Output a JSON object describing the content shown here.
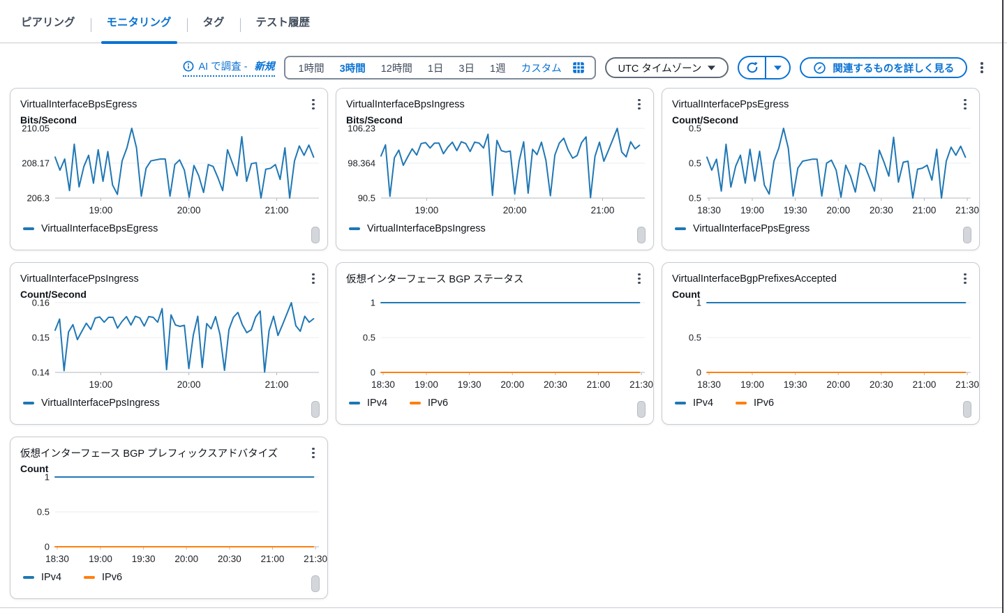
{
  "tabs": [
    {
      "label": "ピアリング",
      "active": false
    },
    {
      "label": "モニタリング",
      "active": true
    },
    {
      "label": "タグ",
      "active": false
    },
    {
      "label": "テスト履歴",
      "active": false
    }
  ],
  "toolbar": {
    "ai_investigate": {
      "label": "AI で調査 -",
      "new_label": "新規"
    },
    "time_ranges": [
      "1時間",
      "3時間",
      "12時間",
      "1日",
      "3日",
      "1週"
    ],
    "selected_range": "3時間",
    "custom_label": "カスタム",
    "timezone_label": "UTC タイムゾーン",
    "explore_related_label": "関連するものを詳しく見る"
  },
  "colors": {
    "accent": "#0972d3",
    "series_blue": "#1f77b4",
    "series_orange": "#ff7f0e",
    "card_border": "#c6cbd2",
    "gridline": "#e9ecef",
    "axis": "#b0b8c1"
  },
  "chart_data": [
    {
      "type": "line",
      "title": "VirtualInterfaceBpsEgress",
      "ylabel": "Bits/Second",
      "ylim": [
        206.3,
        210.05
      ],
      "yticks": [
        "210.05",
        "208.17",
        "206.3"
      ],
      "x_range": [
        "18:30",
        "21:30"
      ],
      "xticks": [
        {
          "label": "19:00",
          "pos": 17.3
        },
        {
          "label": "20:00",
          "pos": 50.7
        },
        {
          "label": "21:00",
          "pos": 84
        }
      ],
      "series": [
        {
          "name": "VirtualInterfaceBpsEgress",
          "color": "#1f77b4",
          "values": [
            208.5,
            207.8,
            208.4,
            206.7,
            209.2,
            206.9,
            208.0,
            208.6,
            207.1,
            208.9,
            207.2,
            208.8,
            207.0,
            206.5,
            208.3,
            209.0,
            210.05,
            209.0,
            206.4,
            207.9,
            208.3,
            208.35,
            208.4,
            208.4,
            206.4,
            208.1,
            208.35,
            207.8,
            206.35,
            208.05,
            207.5,
            206.6,
            208.1,
            208.0,
            207.4,
            206.7,
            208.9,
            208.2,
            207.5,
            209.6,
            207.2,
            208.15,
            208.2,
            206.3,
            207.85,
            207.9,
            208.1,
            207.3,
            209.0,
            206.3,
            208.3,
            209.1,
            208.6,
            209.15,
            208.5
          ]
        }
      ],
      "legend": [
        {
          "label": "VirtualInterfaceBpsEgress",
          "color": "#1f77b4"
        }
      ]
    },
    {
      "type": "line",
      "title": "VirtualInterfaceBpsIngress",
      "ylabel": "Bits/Second",
      "ylim": [
        90.5,
        106.23
      ],
      "yticks": [
        "106.23",
        "98.364",
        "90.5"
      ],
      "x_range": [
        "18:30",
        "21:30"
      ],
      "xticks": [
        {
          "label": "19:00",
          "pos": 17.3
        },
        {
          "label": "20:00",
          "pos": 50.7
        },
        {
          "label": "21:00",
          "pos": 84
        }
      ],
      "series": [
        {
          "name": "VirtualInterfaceBpsIngress",
          "color": "#1f77b4",
          "values": [
            100.0,
            102.5,
            90.9,
            99.6,
            101.3,
            97.9,
            99.8,
            101.6,
            100.2,
            102.8,
            103.0,
            101.8,
            102.9,
            102.9,
            100.5,
            102.0,
            103.1,
            101.2,
            103.2,
            102.8,
            101.0,
            103.1,
            102.9,
            101.8,
            104.9,
            91.1,
            103.5,
            101.2,
            100.9,
            101.1,
            91.4,
            98.9,
            103.2,
            91.6,
            101.5,
            100.3,
            103.1,
            99.0,
            91.0,
            100.2,
            102.9,
            104.0,
            101.3,
            99.5,
            100.1,
            103.0,
            104.3,
            90.6,
            99.9,
            103.1,
            98.8,
            101.2,
            103.7,
            106.23,
            100.9,
            99.8,
            103.2,
            101.6,
            102.4
          ]
        }
      ],
      "legend": [
        {
          "label": "VirtualInterfaceBpsIngress",
          "color": "#1f77b4"
        }
      ]
    },
    {
      "type": "line",
      "title": "VirtualInterfacePpsEgress",
      "ylabel": "Count/Second",
      "ylim": [
        0.4965,
        0.5035
      ],
      "yticks": [
        "0.5",
        "0.5",
        "0.5"
      ],
      "x_range": [
        "18:30",
        "21:30"
      ],
      "xticks": [
        {
          "label": "18:30",
          "pos": 0.8
        },
        {
          "label": "19:00",
          "pos": 17.2
        },
        {
          "label": "19:30",
          "pos": 33.5
        },
        {
          "label": "20:00",
          "pos": 49.8
        },
        {
          "label": "20:30",
          "pos": 66.1
        },
        {
          "label": "21:00",
          "pos": 82.4
        },
        {
          "label": "21:30",
          "pos": 98.7
        }
      ],
      "series": [
        {
          "name": "VirtualInterfacePpsEgress",
          "color": "#1f77b4",
          "values": [
            0.5006,
            0.4993,
            0.5004,
            0.4972,
            0.5019,
            0.4976,
            0.4997,
            0.5008,
            0.498,
            0.5014,
            0.4982,
            0.5012,
            0.4978,
            0.4969,
            0.5002,
            0.5015,
            0.5035,
            0.5015,
            0.4967,
            0.4995,
            0.5002,
            0.5003,
            0.5004,
            0.5004,
            0.4967,
            0.5,
            0.5003,
            0.4993,
            0.4966,
            0.4998,
            0.4987,
            0.4971,
            0.5,
            0.4997,
            0.4985,
            0.4972,
            0.5013,
            0.5001,
            0.4987,
            0.5026,
            0.4981,
            0.5001,
            0.5002,
            0.4965,
            0.4994,
            0.4995,
            0.4998,
            0.4983,
            0.5014,
            0.4965,
            0.5002,
            0.5016,
            0.5008,
            0.5017,
            0.5006
          ]
        }
      ],
      "legend": [
        {
          "label": "VirtualInterfacePpsEgress",
          "color": "#1f77b4"
        }
      ]
    },
    {
      "type": "line",
      "title": "VirtualInterfacePpsIngress",
      "ylabel": "Count/Second",
      "ylim": [
        0.14,
        0.16
      ],
      "yticks": [
        "0.16",
        "0.15",
        "0.14"
      ],
      "x_range": [
        "18:30",
        "21:30"
      ],
      "xticks": [
        {
          "label": "19:00",
          "pos": 17.3
        },
        {
          "label": "20:00",
          "pos": 50.7
        },
        {
          "label": "21:00",
          "pos": 84
        }
      ],
      "series": [
        {
          "name": "VirtualInterfacePpsIngress",
          "color": "#1f77b4",
          "values": [
            0.1521,
            0.1553,
            0.1405,
            0.1516,
            0.1537,
            0.1494,
            0.1518,
            0.1541,
            0.1523,
            0.1556,
            0.1559,
            0.1544,
            0.1558,
            0.1558,
            0.1527,
            0.1546,
            0.156,
            0.1536,
            0.1561,
            0.1556,
            0.1533,
            0.156,
            0.1558,
            0.1544,
            0.1583,
            0.1408,
            0.1565,
            0.1536,
            0.1532,
            0.1535,
            0.1411,
            0.1507,
            0.1561,
            0.1414,
            0.154,
            0.1525,
            0.156,
            0.1508,
            0.1406,
            0.1523,
            0.1558,
            0.1572,
            0.1537,
            0.1514,
            0.1522,
            0.1559,
            0.1576,
            0.1401,
            0.152,
            0.1561,
            0.1506,
            0.1536,
            0.1568,
            0.16,
            0.1534,
            0.1518,
            0.1561,
            0.1544,
            0.1554
          ]
        }
      ],
      "legend": [
        {
          "label": "VirtualInterfacePpsIngress",
          "color": "#1f77b4"
        }
      ]
    },
    {
      "type": "line",
      "title": "仮想インターフェース BGP ステータス",
      "ylabel": "",
      "ylim": [
        0,
        1
      ],
      "yticks": [
        "1",
        "0.5",
        "0"
      ],
      "x_range": [
        "18:30",
        "21:30"
      ],
      "xticks": [
        {
          "label": "18:30",
          "pos": 0.8
        },
        {
          "label": "19:00",
          "pos": 17.2
        },
        {
          "label": "19:30",
          "pos": 33.5
        },
        {
          "label": "20:00",
          "pos": 49.8
        },
        {
          "label": "20:30",
          "pos": 66.1
        },
        {
          "label": "21:00",
          "pos": 82.4
        },
        {
          "label": "21:30",
          "pos": 98.7
        }
      ],
      "series": [
        {
          "name": "IPv4",
          "color": "#1f77b4",
          "values": [
            1,
            1
          ]
        },
        {
          "name": "IPv6",
          "color": "#ff7f0e",
          "values": [
            0,
            0
          ]
        }
      ],
      "legend": [
        {
          "label": "IPv4",
          "color": "#1f77b4"
        },
        {
          "label": "IPv6",
          "color": "#ff7f0e"
        }
      ]
    },
    {
      "type": "line",
      "title": "VirtualInterfaceBgpPrefixesAccepted",
      "ylabel": "Count",
      "ylim": [
        0,
        1
      ],
      "yticks": [
        "1",
        "0.5",
        "0"
      ],
      "x_range": [
        "18:30",
        "21:30"
      ],
      "xticks": [
        {
          "label": "18:30",
          "pos": 0.8
        },
        {
          "label": "19:00",
          "pos": 17.2
        },
        {
          "label": "19:30",
          "pos": 33.5
        },
        {
          "label": "20:00",
          "pos": 49.8
        },
        {
          "label": "20:30",
          "pos": 66.1
        },
        {
          "label": "21:00",
          "pos": 82.4
        },
        {
          "label": "21:30",
          "pos": 98.7
        }
      ],
      "series": [
        {
          "name": "IPv4",
          "color": "#1f77b4",
          "values": [
            1,
            1
          ]
        },
        {
          "name": "IPv6",
          "color": "#ff7f0e",
          "values": [
            0,
            0
          ]
        }
      ],
      "legend": [
        {
          "label": "IPv4",
          "color": "#1f77b4"
        },
        {
          "label": "IPv6",
          "color": "#ff7f0e"
        }
      ]
    },
    {
      "type": "line",
      "title": "仮想インターフェース BGP プレフィックスアドバタイズ",
      "ylabel": "Count",
      "ylim": [
        0,
        1
      ],
      "yticks": [
        "1",
        "0.5",
        "0"
      ],
      "x_range": [
        "18:30",
        "21:30"
      ],
      "xticks": [
        {
          "label": "18:30",
          "pos": 0.8
        },
        {
          "label": "19:00",
          "pos": 17.2
        },
        {
          "label": "19:30",
          "pos": 33.5
        },
        {
          "label": "20:00",
          "pos": 49.8
        },
        {
          "label": "20:30",
          "pos": 66.1
        },
        {
          "label": "21:00",
          "pos": 82.4
        },
        {
          "label": "21:30",
          "pos": 98.7
        }
      ],
      "series": [
        {
          "name": "IPv4",
          "color": "#1f77b4",
          "values": [
            1,
            1
          ]
        },
        {
          "name": "IPv6",
          "color": "#ff7f0e",
          "values": [
            0,
            0
          ]
        }
      ],
      "legend": [
        {
          "label": "IPv4",
          "color": "#1f77b4"
        },
        {
          "label": "IPv6",
          "color": "#ff7f0e"
        }
      ]
    }
  ]
}
